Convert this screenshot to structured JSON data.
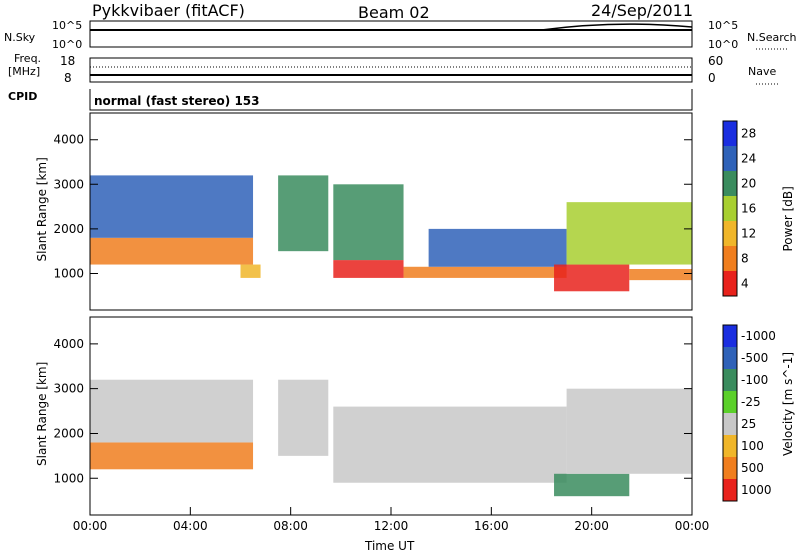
{
  "header": {
    "radar": "Pykkvibaer (fitACF)",
    "beam": "Beam 02",
    "date": "24/Sep/2011"
  },
  "top_panels": {
    "nsky": {
      "label": "N.Sky",
      "y_hi": "10^5",
      "y_lo": "10^0"
    },
    "nsearch": {
      "label": "N.Search",
      "y_hi": "10^5",
      "y_lo": "10^0"
    },
    "freq": {
      "label_line1": "Freq.",
      "label_line2": "[MHz]",
      "y_hi": "18",
      "y_lo": "8"
    },
    "nave": {
      "label": "Nave",
      "y_hi": "60",
      "y_lo": "0"
    },
    "cpid": {
      "label": "CPID",
      "mode_text": "normal (fast stereo) 153"
    }
  },
  "chart_data": [
    {
      "type": "heatmap",
      "name": "power",
      "ylabel": "Slant Range [km]",
      "yticks": [
        1000,
        2000,
        3000,
        4000
      ],
      "ylim": [
        180,
        4600
      ],
      "xlim": [
        0,
        24
      ],
      "colorbar": {
        "label": "Power [dB]",
        "ticks": [
          "4",
          "8",
          "12",
          "16",
          "20",
          "24",
          "28"
        ],
        "colors": [
          "#1a2ee0",
          "#2f62b8",
          "#3a8c5e",
          "#a8cf30",
          "#f0b62a",
          "#f07e1e",
          "#e8221c"
        ]
      },
      "bands": [
        {
          "t0": 0.0,
          "t1": 6.5,
          "r0": 1200,
          "r1": 1800,
          "level": 5
        },
        {
          "t0": 0.0,
          "t1": 6.5,
          "r0": 1800,
          "r1": 3200,
          "level": 1
        },
        {
          "t0": 6.0,
          "t1": 6.8,
          "r0": 900,
          "r1": 1200,
          "level": 4
        },
        {
          "t0": 7.5,
          "t1": 9.5,
          "r0": 1500,
          "r1": 3200,
          "level": 2
        },
        {
          "t0": 9.7,
          "t1": 12.5,
          "r0": 900,
          "r1": 1300,
          "level": 6
        },
        {
          "t0": 9.7,
          "t1": 12.5,
          "r0": 1300,
          "r1": 3000,
          "level": 2
        },
        {
          "t0": 12.5,
          "t1": 19.0,
          "r0": 900,
          "r1": 1150,
          "level": 5
        },
        {
          "t0": 13.5,
          "t1": 19.0,
          "r0": 1150,
          "r1": 2000,
          "level": 1
        },
        {
          "t0": 18.5,
          "t1": 21.5,
          "r0": 600,
          "r1": 1200,
          "level": 6
        },
        {
          "t0": 19.0,
          "t1": 24.0,
          "r0": 1200,
          "r1": 2600,
          "level": 3
        },
        {
          "t0": 21.5,
          "t1": 24.0,
          "r0": 850,
          "r1": 1100,
          "level": 5
        }
      ]
    },
    {
      "type": "heatmap",
      "name": "velocity",
      "ylabel": "Slant Range [km]",
      "yticks": [
        1000,
        2000,
        3000,
        4000
      ],
      "ylim": [
        180,
        4600
      ],
      "xlim": [
        0,
        24
      ],
      "colorbar": {
        "label": "Velocity [m s^-1]",
        "ticks": [
          "1000",
          "500",
          "100",
          "25",
          "-25",
          "-100",
          "-500",
          "-1000"
        ],
        "colors": [
          "#1a2ee0",
          "#2f62b8",
          "#3a8c5e",
          "#5bd02a",
          "#c8c8c8",
          "#f0b62a",
          "#f07e1e",
          "#e8221c"
        ]
      },
      "bands": [
        {
          "t0": 0.0,
          "t1": 6.5,
          "r0": 1200,
          "r1": 1800,
          "level": 6
        },
        {
          "t0": 0.0,
          "t1": 6.5,
          "r0": 1800,
          "r1": 3200,
          "level": 4
        },
        {
          "t0": 7.5,
          "t1": 9.5,
          "r0": 1500,
          "r1": 3200,
          "level": 4
        },
        {
          "t0": 9.7,
          "t1": 19.0,
          "r0": 900,
          "r1": 2600,
          "level": 4
        },
        {
          "t0": 18.5,
          "t1": 21.5,
          "r0": 600,
          "r1": 1100,
          "level": 2
        },
        {
          "t0": 19.0,
          "t1": 24.0,
          "r0": 1100,
          "r1": 3000,
          "level": 4
        }
      ]
    }
  ],
  "time_axis": {
    "label": "Time UT",
    "ticks": [
      "00:00",
      "04:00",
      "08:00",
      "12:00",
      "16:00",
      "20:00",
      "00:00"
    ]
  }
}
